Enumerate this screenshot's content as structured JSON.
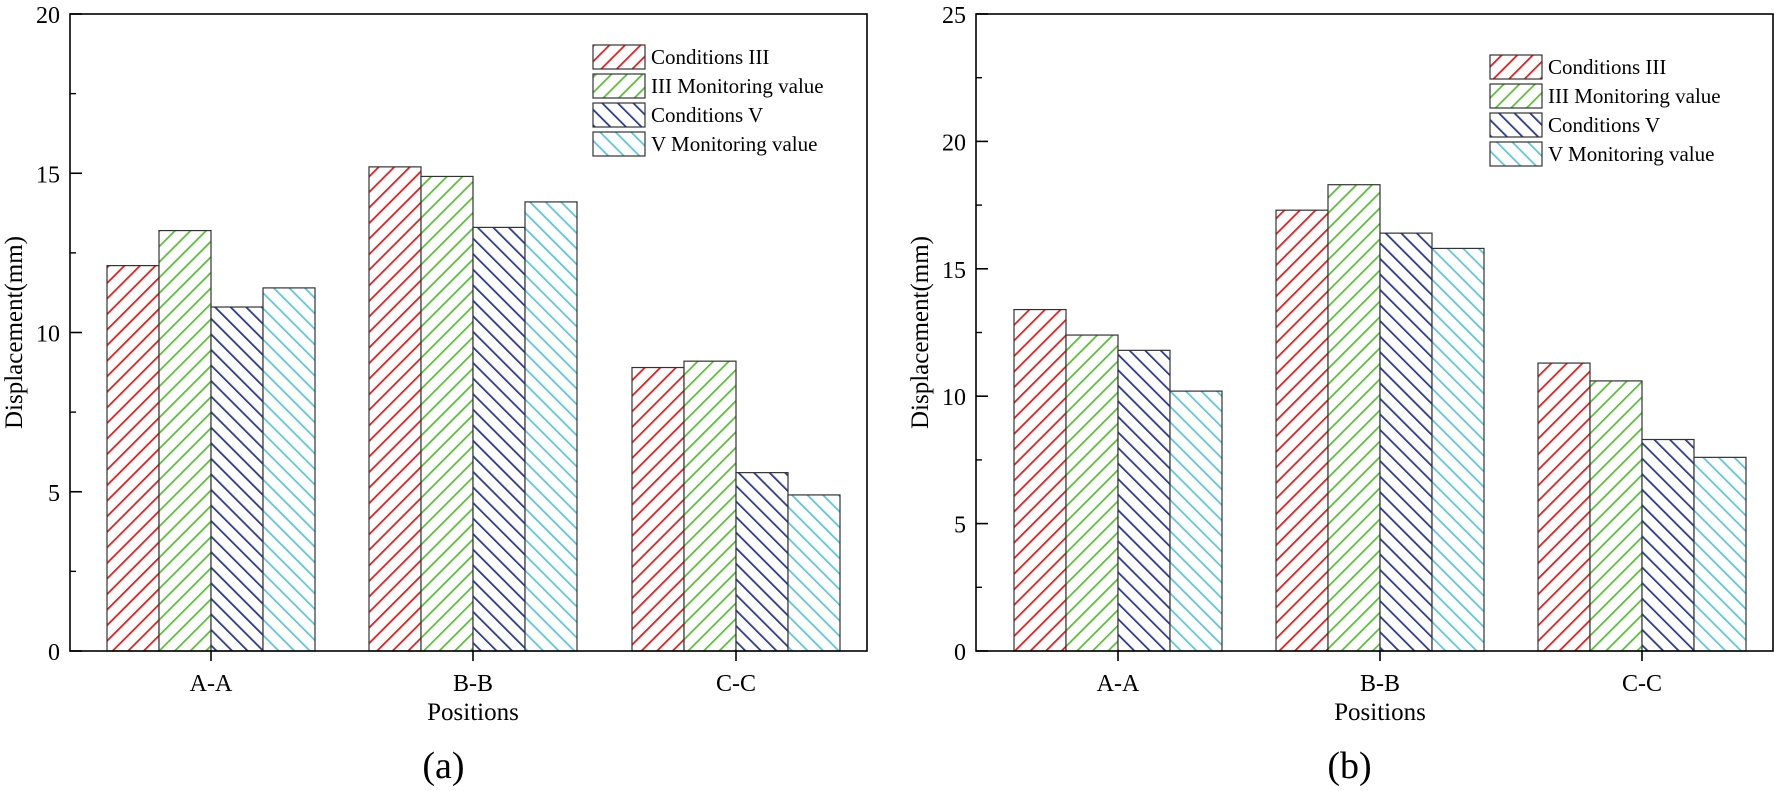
{
  "chart_data": [
    {
      "type": "bar",
      "panel_label": "(a)",
      "categories": [
        "A-A",
        "B-B",
        "C-C"
      ],
      "series": [
        {
          "name": "Conditions III",
          "values": [
            12.1,
            15.2,
            8.9
          ]
        },
        {
          "name": "III Monitoring value",
          "values": [
            13.2,
            14.9,
            9.1
          ]
        },
        {
          "name": "Conditions V",
          "values": [
            10.8,
            13.3,
            5.6
          ]
        },
        {
          "name": "V Monitoring value",
          "values": [
            11.4,
            14.1,
            4.9
          ]
        }
      ],
      "xlabel": "Positions",
      "ylabel": "Displacement(mm)",
      "ylim": [
        0,
        20
      ],
      "yticks": [
        0,
        5,
        10,
        15,
        20
      ],
      "legend_position": "top-right",
      "grid": false
    },
    {
      "type": "bar",
      "panel_label": "(b)",
      "categories": [
        "A-A",
        "B-B",
        "C-C"
      ],
      "series": [
        {
          "name": "Conditions III",
          "values": [
            13.4,
            17.3,
            11.3
          ]
        },
        {
          "name": "III Monitoring value",
          "values": [
            12.4,
            18.3,
            10.6
          ]
        },
        {
          "name": "Conditions V",
          "values": [
            11.8,
            16.4,
            8.3
          ]
        },
        {
          "name": "V Monitoring value",
          "values": [
            10.2,
            15.8,
            7.6
          ]
        }
      ],
      "xlabel": "Positions",
      "ylabel": "Displacement(mm)",
      "ylim": [
        0,
        25
      ],
      "yticks": [
        0,
        5,
        10,
        15,
        20,
        25
      ],
      "legend_position": "top-right",
      "grid": false
    }
  ],
  "series_colors": [
    "#e02020",
    "#5cbf3a",
    "#2b3a8f",
    "#5ec8d8"
  ]
}
